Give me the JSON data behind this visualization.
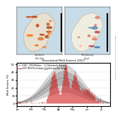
{
  "title": "Greenland Melt Extent 2017",
  "map_title_left": "Number of\nMelt Days",
  "map_title_right": "Melt Anomaly\n(Days)",
  "ylabel": "Melt Extent (%)",
  "yticks": [
    0,
    10,
    20,
    30,
    40,
    50
  ],
  "ylim": [
    -3,
    52
  ],
  "legend": {
    "median_label": "1981 - 2010 Median",
    "melt_label": "2017 Melt Percentage",
    "interdecile_label": "Interdecile Range",
    "interquartile_label": "Interquartile Range"
  },
  "colors": {
    "median": "#555555",
    "melt_2017": "#cc0000",
    "interdecile": "#d0d0d0",
    "interquartile": "#b0b0b0",
    "map_ocean": "#c8dce8",
    "background": "#ffffff"
  },
  "sidebar_text": "National Snow & Ice Data Center | University of Georgia"
}
